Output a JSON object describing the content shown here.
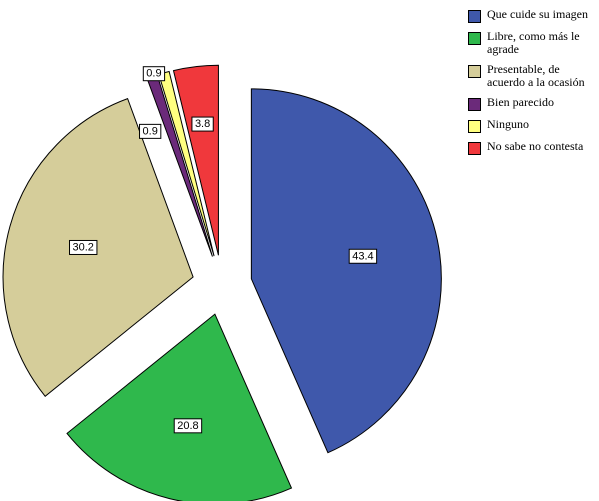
{
  "chart_data": {
    "type": "pie",
    "categories": [
      "Que cuide su imagen",
      "Libre, como más le agrade",
      "Presentable, de acuerdo a la ocasión",
      "Bien parecido",
      "Ninguno",
      "No sabe no contesta"
    ],
    "values": [
      43.4,
      20.8,
      30.2,
      0.9,
      0.9,
      3.8
    ],
    "colors": [
      "#3f58ab",
      "#2fb84c",
      "#d5cd9a",
      "#6b2a7a",
      "#ffff80",
      "#f0383c"
    ],
    "legend": "right"
  }
}
